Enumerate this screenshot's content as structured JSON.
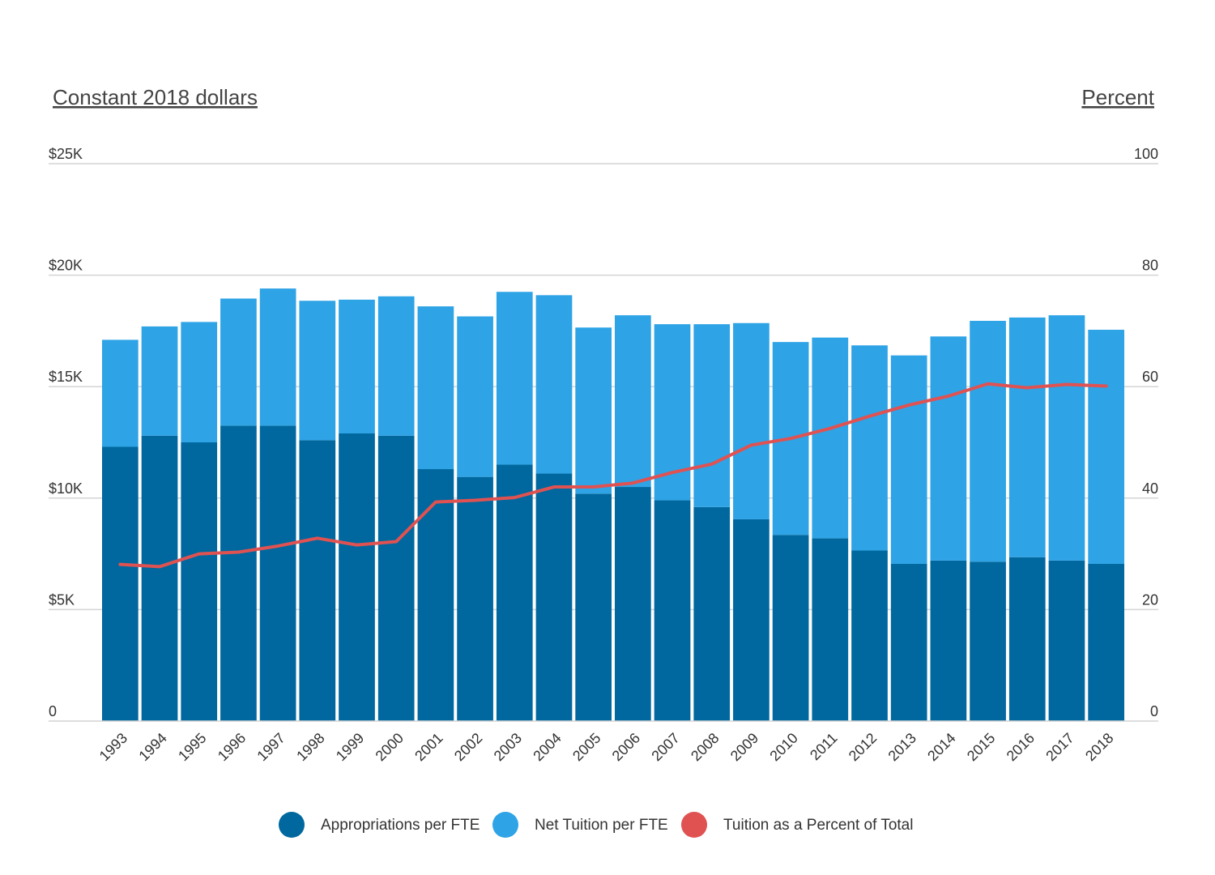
{
  "chart_data": {
    "type": "bar",
    "stacked": true,
    "left_axis_title": "Constant 2018 dollars",
    "right_axis_title": "Percent",
    "left_ticks": [
      {
        "value": 0,
        "label": "0"
      },
      {
        "value": 5000,
        "label": "$5K"
      },
      {
        "value": 10000,
        "label": "$10K"
      },
      {
        "value": 15000,
        "label": "$15K"
      },
      {
        "value": 20000,
        "label": "$20K"
      },
      {
        "value": 25000,
        "label": "$25K"
      }
    ],
    "right_ticks": [
      {
        "value": 0,
        "label": "0"
      },
      {
        "value": 20,
        "label": "20"
      },
      {
        "value": 40,
        "label": "40"
      },
      {
        "value": 60,
        "label": "60"
      },
      {
        "value": 80,
        "label": "80"
      },
      {
        "value": 100,
        "label": "100"
      }
    ],
    "ylim_left": [
      0,
      25000
    ],
    "ylim_right": [
      0,
      100
    ],
    "grid": true,
    "legend_position": "bottom",
    "categories": [
      "1993",
      "1994",
      "1995",
      "1996",
      "1997",
      "1998",
      "1999",
      "2000",
      "2001",
      "2002",
      "2003",
      "2004",
      "2005",
      "2006",
      "2007",
      "2008",
      "2009",
      "2010",
      "2011",
      "2012",
      "2013",
      "2014",
      "2015",
      "2016",
      "2017",
      "2018"
    ],
    "series": [
      {
        "name": "Appropriations per FTE",
        "type": "bar",
        "axis": "left",
        "color": "#00689e",
        "values": [
          12300,
          12800,
          12500,
          13250,
          13250,
          12600,
          12900,
          12800,
          11300,
          10950,
          11500,
          11100,
          10200,
          10500,
          9900,
          9600,
          9050,
          8350,
          8200,
          7650,
          7050,
          7200,
          7150,
          7350,
          7200,
          7050
        ]
      },
      {
        "name": "Net Tuition per FTE",
        "type": "bar",
        "axis": "left",
        "color": "#2ea3e6",
        "values": [
          4800,
          4900,
          5400,
          5700,
          6150,
          6250,
          6000,
          6250,
          7300,
          7200,
          7750,
          8000,
          7450,
          7700,
          7900,
          8200,
          8800,
          8650,
          9000,
          9200,
          9350,
          10050,
          10800,
          10750,
          11000,
          10500
        ]
      },
      {
        "name": "Tuition as a Percent of Total",
        "type": "line",
        "axis": "right",
        "color": "#e05252",
        "values": [
          28.1,
          27.7,
          30.0,
          30.3,
          31.4,
          32.8,
          31.6,
          32.2,
          39.3,
          39.6,
          40.1,
          42.0,
          42.0,
          42.7,
          44.6,
          46.1,
          49.5,
          50.7,
          52.5,
          54.7,
          56.7,
          58.3,
          60.5,
          59.8,
          60.4,
          60.1
        ]
      }
    ]
  }
}
